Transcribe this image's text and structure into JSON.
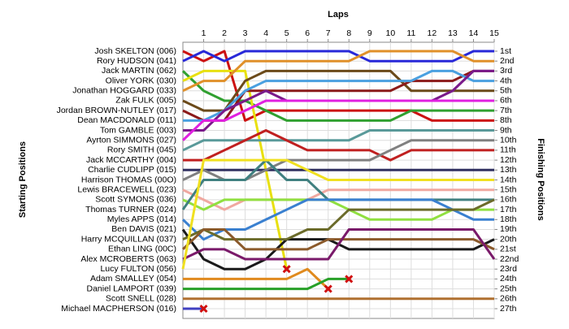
{
  "chart_data": {
    "type": "lap",
    "x_title": "Laps",
    "y_title": "Starting Positions",
    "y2_title": "Finishing Positions",
    "x": [
      0,
      1,
      2,
      3,
      4,
      5,
      6,
      7,
      8,
      9,
      10,
      11,
      12,
      13,
      14,
      15
    ],
    "xlim": [
      0,
      15
    ],
    "xticks": [
      1,
      2,
      3,
      4,
      5,
      6,
      7,
      8,
      9,
      10,
      11,
      12,
      13,
      14,
      15
    ],
    "ylim": [
      27,
      1
    ],
    "yticks": [
      {
        "value": 1,
        "label": "1st"
      },
      {
        "value": 2,
        "label": "2nd"
      },
      {
        "value": 3,
        "label": "3rd"
      },
      {
        "value": 4,
        "label": "4th"
      },
      {
        "value": 5,
        "label": "5th"
      },
      {
        "value": 6,
        "label": "6th"
      },
      {
        "value": 7,
        "label": "7th"
      },
      {
        "value": 8,
        "label": "8th"
      },
      {
        "value": 9,
        "label": "9th"
      },
      {
        "value": 10,
        "label": "10th"
      },
      {
        "value": 11,
        "label": "11th"
      },
      {
        "value": 12,
        "label": "12th"
      },
      {
        "value": 13,
        "label": "13th"
      },
      {
        "value": 14,
        "label": "14th"
      },
      {
        "value": 15,
        "label": "15th"
      },
      {
        "value": 16,
        "label": "16th"
      },
      {
        "value": 17,
        "label": "17th"
      },
      {
        "value": 18,
        "label": "18th"
      },
      {
        "value": 19,
        "label": "19th"
      },
      {
        "value": 20,
        "label": "20th"
      },
      {
        "value": 21,
        "label": "21st"
      },
      {
        "value": 22,
        "label": "22nd"
      },
      {
        "value": 23,
        "label": "23rd"
      },
      {
        "value": 24,
        "label": "24th"
      },
      {
        "value": 25,
        "label": "25th"
      },
      {
        "value": 26,
        "label": "26th"
      },
      {
        "value": 27,
        "label": "27th"
      }
    ],
    "grid": true,
    "series": [
      {
        "name": "Josh SKELTON (006)",
        "color": "#cc1010",
        "values": [
          1,
          2,
          1,
          8,
          7,
          7,
          7,
          7,
          7,
          7,
          7,
          7,
          8,
          8,
          8,
          8
        ]
      },
      {
        "name": "Rory HUDSON (041)",
        "color": "#2828d8",
        "values": [
          2,
          1,
          2,
          1,
          1,
          1,
          1,
          1,
          1,
          2,
          2,
          2,
          2,
          2,
          1,
          1
        ]
      },
      {
        "name": "Jack MARTIN (062)",
        "color": "#30a030",
        "values": [
          3,
          5,
          6,
          6,
          7,
          8,
          8,
          8,
          8,
          8,
          8,
          7,
          7,
          7,
          7,
          7
        ]
      },
      {
        "name": "Oliver YORK (030)",
        "color": "#e8e010",
        "values": [
          4,
          3,
          3,
          3,
          13,
          23,
          null,
          null,
          null,
          null,
          null,
          null,
          null,
          null,
          null,
          null
        ]
      },
      {
        "name": "Jonathan HOGGARD (033)",
        "color": "#e0902a",
        "values": [
          5,
          4,
          4,
          2,
          2,
          2,
          2,
          2,
          2,
          1,
          1,
          1,
          1,
          1,
          2,
          2
        ]
      },
      {
        "name": "Zak FULK (005)",
        "color": "#6b4a1a",
        "values": [
          6,
          7,
          7,
          4,
          3,
          3,
          3,
          3,
          3,
          3,
          3,
          5,
          5,
          5,
          5,
          5
        ]
      },
      {
        "name": "Jordan BROWN-NUTLEY (017)",
        "color": "#8b1a1a",
        "values": [
          7,
          8,
          8,
          5,
          5,
          5,
          5,
          5,
          5,
          5,
          5,
          4,
          4,
          4,
          3,
          3
        ]
      },
      {
        "name": "Dean MACDONALD (011)",
        "color": "#4aa0e0",
        "values": [
          8,
          8,
          7,
          5,
          4,
          4,
          4,
          4,
          4,
          4,
          4,
          4,
          3,
          3,
          4,
          4
        ]
      },
      {
        "name": "Tom GAMBLE (003)",
        "color": "#7a1a8a",
        "values": [
          9,
          9,
          7,
          6,
          5,
          6,
          6,
          6,
          6,
          6,
          6,
          6,
          6,
          5,
          3,
          3
        ]
      },
      {
        "name": "Ayrton SIMMONS (027)",
        "color": "#e020e0",
        "values": [
          10,
          8,
          8,
          7,
          6,
          6,
          6,
          6,
          6,
          6,
          6,
          6,
          6,
          6,
          6,
          6
        ]
      },
      {
        "name": "Rory SMITH (045)",
        "color": "#5a9a9a",
        "values": [
          11,
          10,
          10,
          10,
          10,
          10,
          10,
          10,
          10,
          9,
          9,
          9,
          9,
          9,
          9,
          9
        ]
      },
      {
        "name": "Jack MCCARTHY (004)",
        "color": "#c02020",
        "values": [
          12,
          12,
          11,
          10,
          9,
          10,
          11,
          11,
          11,
          11,
          12,
          11,
          11,
          11,
          11,
          11
        ]
      },
      {
        "name": "Charlie CUDLIPP (015)",
        "color": "#303060",
        "values": [
          13,
          13,
          13,
          13,
          13,
          13,
          13,
          13,
          13,
          13,
          13,
          13,
          13,
          13,
          13,
          13
        ]
      },
      {
        "name": "Harrison THOMAS (00O)",
        "color": "#808080",
        "values": [
          14,
          13,
          14,
          14,
          13,
          12,
          12,
          12,
          12,
          12,
          11,
          10,
          10,
          10,
          10,
          10
        ]
      },
      {
        "name": "Lewis BRACEWELL (023)",
        "color": "#f0a8a0",
        "values": [
          15,
          16,
          17,
          16,
          16,
          16,
          16,
          15,
          15,
          15,
          15,
          15,
          15,
          15,
          15,
          15
        ]
      },
      {
        "name": "Scott SYMONS (036)",
        "color": "#90e040",
        "values": [
          16,
          17,
          16,
          16,
          16,
          16,
          16,
          16,
          17,
          18,
          18,
          18,
          18,
          17,
          17,
          17
        ]
      },
      {
        "name": "Thomas TURNER (024)",
        "color": "#408080",
        "values": [
          17,
          14,
          14,
          14,
          12,
          14,
          14,
          16,
          16,
          16,
          16,
          16,
          16,
          16,
          16,
          16
        ]
      },
      {
        "name": "Myles APPS (014)",
        "color": "#3a80d0",
        "values": [
          18,
          20,
          19,
          19,
          18,
          17,
          16,
          16,
          16,
          16,
          16,
          16,
          16,
          17,
          18,
          18
        ]
      },
      {
        "name": "Ben DAVIS (021)",
        "color": "#1a1a1a",
        "values": [
          19,
          22,
          23,
          23,
          22,
          20,
          20,
          20,
          21,
          21,
          21,
          21,
          21,
          21,
          21,
          20
        ]
      },
      {
        "name": "Harry MCQUILLAN (037)",
        "color": "#6b6b2a",
        "values": [
          20,
          19,
          20,
          20,
          20,
          20,
          19,
          19,
          17,
          17,
          17,
          17,
          17,
          17,
          17,
          16
        ]
      },
      {
        "name": "Ethan LING (00C)",
        "color": "#8b5a2b",
        "values": [
          21,
          19,
          19,
          21,
          21,
          21,
          21,
          20,
          20,
          20,
          20,
          20,
          20,
          20,
          20,
          21
        ]
      },
      {
        "name": "Alex MCROBERTS (063)",
        "color": "#7a1a6a",
        "values": [
          22,
          21,
          21,
          22,
          22,
          22,
          22,
          22,
          19,
          19,
          19,
          19,
          19,
          19,
          19,
          22
        ]
      },
      {
        "name": "Lucy FULTON (056)",
        "color": "#f0e020",
        "values": [
          23,
          12,
          12,
          12,
          12,
          12,
          13,
          14,
          14,
          14,
          14,
          14,
          14,
          14,
          14,
          14
        ]
      },
      {
        "name": "Adam SMALLEY (054)",
        "color": "#e08a1e",
        "values": [
          24,
          24,
          24,
          24,
          24,
          24,
          23,
          25,
          null,
          null,
          null,
          null,
          null,
          null,
          null,
          null
        ]
      },
      {
        "name": "Daniel LAMPORT (039)",
        "color": "#28a028",
        "values": [
          25,
          25,
          25,
          25,
          25,
          25,
          25,
          24,
          24,
          null,
          null,
          null,
          null,
          null,
          null,
          null
        ]
      },
      {
        "name": "Scott SNELL (028)",
        "color": "#b07030",
        "values": [
          26,
          26,
          26,
          26,
          26,
          26,
          26,
          26,
          26,
          26,
          26,
          26,
          26,
          26,
          26,
          26
        ]
      },
      {
        "name": "Michael MACPHERSON (016)",
        "color": "#4040c0",
        "values": [
          27,
          27,
          null,
          null,
          null,
          null,
          null,
          null,
          null,
          null,
          null,
          null,
          null,
          null,
          null,
          null
        ]
      }
    ]
  }
}
